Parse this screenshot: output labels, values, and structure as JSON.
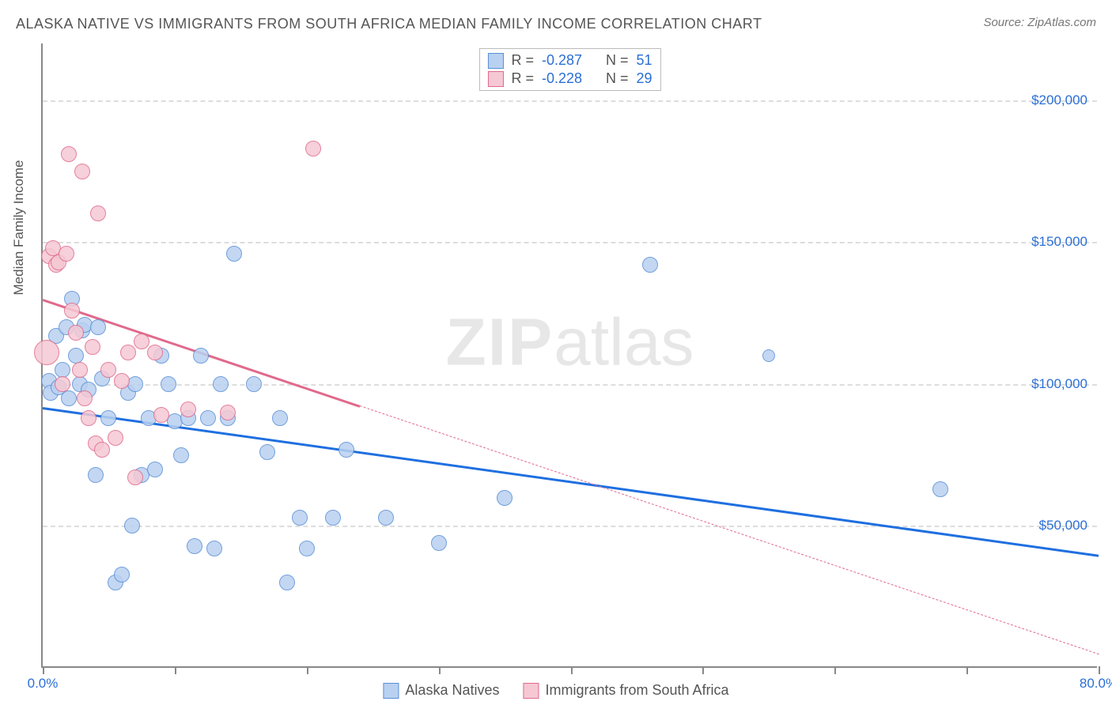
{
  "title": "ALASKA NATIVE VS IMMIGRANTS FROM SOUTH AFRICA MEDIAN FAMILY INCOME CORRELATION CHART",
  "source": "Source: ZipAtlas.com",
  "watermark_bold": "ZIP",
  "watermark_rest": "atlas",
  "y_axis_title": "Median Family Income",
  "chart": {
    "type": "scatter-with-regression",
    "background_color": "#ffffff",
    "grid_color": "#dddddd",
    "axis_color": "#888888",
    "text_color": "#555555",
    "value_color": "#2b6fd6",
    "xlim": [
      0,
      80
    ],
    "ylim": [
      0,
      220000
    ],
    "x_ticks": [
      0,
      10,
      20,
      30,
      40,
      50,
      60,
      70,
      80
    ],
    "x_tick_labels": {
      "0": "0.0%",
      "80": "80.0%"
    },
    "y_gridlines": [
      50000,
      100000,
      150000,
      200000
    ],
    "y_tick_labels": [
      "$50,000",
      "$100,000",
      "$150,000",
      "$200,000"
    ],
    "dot_radius": 10,
    "dot_stroke_width": 1.5,
    "trend_width": 3,
    "series": [
      {
        "key": "alaska_natives",
        "label": "Alaska Natives",
        "fill": "#b9d1f0",
        "stroke": "#5a8fd6",
        "r": -0.287,
        "n": 51,
        "trend": {
          "x1": 0,
          "y1": 92000,
          "x2": 80,
          "y2": 40000,
          "color": "#1f6fe0",
          "dashed": false,
          "opacity": 1
        },
        "points": [
          {
            "x": 0.5,
            "y": 101000
          },
          {
            "x": 0.6,
            "y": 97000
          },
          {
            "x": 1.0,
            "y": 117000
          },
          {
            "x": 1.2,
            "y": 99000
          },
          {
            "x": 1.5,
            "y": 105000
          },
          {
            "x": 1.8,
            "y": 120000
          },
          {
            "x": 2.0,
            "y": 95000
          },
          {
            "x": 2.2,
            "y": 130000
          },
          {
            "x": 2.5,
            "y": 110000
          },
          {
            "x": 2.8,
            "y": 100000
          },
          {
            "x": 3.0,
            "y": 119000
          },
          {
            "x": 3.2,
            "y": 121000
          },
          {
            "x": 3.5,
            "y": 98000
          },
          {
            "x": 4.0,
            "y": 68000
          },
          {
            "x": 4.2,
            "y": 120000
          },
          {
            "x": 4.5,
            "y": 102000
          },
          {
            "x": 5.0,
            "y": 88000
          },
          {
            "x": 5.5,
            "y": 30000
          },
          {
            "x": 6.0,
            "y": 33000
          },
          {
            "x": 6.5,
            "y": 97000
          },
          {
            "x": 6.8,
            "y": 50000
          },
          {
            "x": 7.0,
            "y": 100000
          },
          {
            "x": 7.5,
            "y": 68000
          },
          {
            "x": 8.0,
            "y": 88000
          },
          {
            "x": 8.5,
            "y": 70000
          },
          {
            "x": 9.0,
            "y": 110000
          },
          {
            "x": 9.5,
            "y": 100000
          },
          {
            "x": 10.0,
            "y": 87000
          },
          {
            "x": 10.5,
            "y": 75000
          },
          {
            "x": 11.0,
            "y": 88000
          },
          {
            "x": 11.5,
            "y": 43000
          },
          {
            "x": 12.0,
            "y": 110000
          },
          {
            "x": 12.5,
            "y": 88000
          },
          {
            "x": 13.0,
            "y": 42000
          },
          {
            "x": 13.5,
            "y": 100000
          },
          {
            "x": 14.0,
            "y": 88000
          },
          {
            "x": 14.5,
            "y": 146000
          },
          {
            "x": 16.0,
            "y": 100000
          },
          {
            "x": 17.0,
            "y": 76000
          },
          {
            "x": 18.0,
            "y": 88000
          },
          {
            "x": 18.5,
            "y": 30000
          },
          {
            "x": 19.5,
            "y": 53000
          },
          {
            "x": 20.0,
            "y": 42000
          },
          {
            "x": 22.0,
            "y": 53000
          },
          {
            "x": 23.0,
            "y": 77000
          },
          {
            "x": 26.0,
            "y": 53000
          },
          {
            "x": 30.0,
            "y": 44000
          },
          {
            "x": 35.0,
            "y": 60000
          },
          {
            "x": 46.0,
            "y": 142000
          },
          {
            "x": 55.0,
            "y": 110000,
            "r": 8
          },
          {
            "x": 68.0,
            "y": 63000
          }
        ]
      },
      {
        "key": "south_africa",
        "label": "Immigrants from South Africa",
        "fill": "#f5c8d4",
        "stroke": "#e06a8c",
        "r": -0.228,
        "n": 29,
        "trend": {
          "x1": 0,
          "y1": 130000,
          "x2": 80,
          "y2": 5000,
          "color": "#e06a8c",
          "dashed": true,
          "dash_break_x": 24,
          "opacity": 1
        },
        "points": [
          {
            "x": 0.3,
            "y": 111000,
            "r": 16
          },
          {
            "x": 0.5,
            "y": 145000
          },
          {
            "x": 0.8,
            "y": 148000
          },
          {
            "x": 1.0,
            "y": 142000
          },
          {
            "x": 1.2,
            "y": 143000
          },
          {
            "x": 1.5,
            "y": 100000
          },
          {
            "x": 1.8,
            "y": 146000
          },
          {
            "x": 2.0,
            "y": 181000
          },
          {
            "x": 2.2,
            "y": 126000
          },
          {
            "x": 2.5,
            "y": 118000
          },
          {
            "x": 2.8,
            "y": 105000
          },
          {
            "x": 3.0,
            "y": 175000
          },
          {
            "x": 3.2,
            "y": 95000
          },
          {
            "x": 3.5,
            "y": 88000
          },
          {
            "x": 3.8,
            "y": 113000
          },
          {
            "x": 4.0,
            "y": 79000
          },
          {
            "x": 4.2,
            "y": 160000
          },
          {
            "x": 4.5,
            "y": 77000
          },
          {
            "x": 5.0,
            "y": 105000
          },
          {
            "x": 5.5,
            "y": 81000
          },
          {
            "x": 6.0,
            "y": 101000
          },
          {
            "x": 6.5,
            "y": 111000
          },
          {
            "x": 7.0,
            "y": 67000
          },
          {
            "x": 7.5,
            "y": 115000
          },
          {
            "x": 8.5,
            "y": 111000
          },
          {
            "x": 9.0,
            "y": 89000
          },
          {
            "x": 11.0,
            "y": 91000
          },
          {
            "x": 14.0,
            "y": 90000
          },
          {
            "x": 20.5,
            "y": 183000
          }
        ]
      }
    ],
    "stats_box": {
      "r_label": "R =",
      "n_label": "N ="
    }
  }
}
